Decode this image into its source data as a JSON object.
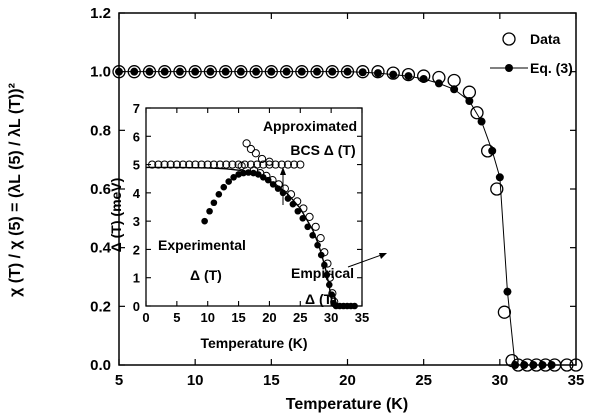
{
  "chart_data": [
    {
      "type": "scatter",
      "xlabel": "Temperature (K)",
      "ylabel": "χ (T) / χ (5) = (λL (5) / λL (T))²",
      "xlim": [
        5,
        35
      ],
      "ylim": [
        0,
        1.2
      ],
      "xticks": [
        5,
        10,
        15,
        20,
        25,
        30,
        35
      ],
      "yticks": [
        0.0,
        0.2,
        0.4,
        0.6,
        0.8,
        1.0,
        1.2
      ],
      "ytick_labels": [
        "0.0",
        "0.2",
        "0.4",
        "0.6",
        "0.8",
        "1.0",
        "1.2"
      ],
      "legend": {
        "placement": "top-right",
        "entries": [
          "Data",
          "Eq. (3)"
        ]
      },
      "series": [
        {
          "name": "Data",
          "marker": "open-circle",
          "points": [
            [
              5,
              1.0
            ],
            [
              6,
              1.0
            ],
            [
              7,
              1.0
            ],
            [
              8,
              1.0
            ],
            [
              9,
              1.0
            ],
            [
              10,
              1.0
            ],
            [
              11,
              1.0
            ],
            [
              12,
              1.0
            ],
            [
              13,
              1.0
            ],
            [
              14,
              1.0
            ],
            [
              15,
              1.0
            ],
            [
              16,
              1.0
            ],
            [
              17,
              1.0
            ],
            [
              18,
              1.0
            ],
            [
              19,
              1.0
            ],
            [
              20,
              1.0
            ],
            [
              21,
              1.0
            ],
            [
              22,
              1.0
            ],
            [
              23,
              0.995
            ],
            [
              24,
              0.99
            ],
            [
              25,
              0.985
            ],
            [
              26,
              0.98
            ],
            [
              27,
              0.97
            ],
            [
              28,
              0.93
            ],
            [
              28.5,
              0.86
            ],
            [
              29.2,
              0.73
            ],
            [
              29.8,
              0.6
            ],
            [
              30.3,
              0.18
            ],
            [
              30.8,
              0.015
            ],
            [
              31.2,
              0.0
            ],
            [
              31.8,
              0.0
            ],
            [
              32.4,
              0.0
            ],
            [
              33,
              0.0
            ],
            [
              33.6,
              0.0
            ],
            [
              34.4,
              0.0
            ],
            [
              35,
              0.0
            ]
          ]
        },
        {
          "name": "Eq. (3)",
          "marker": "filled-circle-with-line",
          "points": [
            [
              5,
              1.0
            ],
            [
              6,
              1.0
            ],
            [
              7,
              1.0
            ],
            [
              8,
              1.0
            ],
            [
              9,
              1.0
            ],
            [
              10,
              1.0
            ],
            [
              11,
              1.0
            ],
            [
              12,
              1.0
            ],
            [
              13,
              1.0
            ],
            [
              14,
              1.0
            ],
            [
              15,
              1.0
            ],
            [
              16,
              1.0
            ],
            [
              17,
              1.0
            ],
            [
              18,
              1.0
            ],
            [
              19,
              1.0
            ],
            [
              20,
              1.0
            ],
            [
              21,
              0.998
            ],
            [
              22,
              0.995
            ],
            [
              23,
              0.99
            ],
            [
              24,
              0.985
            ],
            [
              25,
              0.975
            ],
            [
              26,
              0.96
            ],
            [
              27,
              0.94
            ],
            [
              28,
              0.9
            ],
            [
              28.8,
              0.83
            ],
            [
              29.5,
              0.73
            ],
            [
              30,
              0.64
            ],
            [
              30.5,
              0.25
            ],
            [
              31,
              0.0
            ],
            [
              31.6,
              0.0
            ],
            [
              32.2,
              0.0
            ],
            [
              32.8,
              0.0
            ],
            [
              33.4,
              0.0
            ]
          ]
        }
      ]
    },
    {
      "type": "scatter",
      "xlabel": "Temperature (K)",
      "ylabel": "Δ (T) (meV)",
      "xlim": [
        0,
        35
      ],
      "ylim": [
        0,
        7
      ],
      "xticks": [
        0,
        5,
        10,
        15,
        20,
        25,
        30,
        35
      ],
      "yticks": [
        0,
        1,
        2,
        3,
        4,
        5,
        6,
        7
      ],
      "annotations": {
        "approximated": "Approximated",
        "bcs": "BCS Δ (T)",
        "experimental": "Experimental",
        "experimental_delta": "Δ (T)",
        "empirical": "Empirical",
        "empirical_delta": "Δ (T)"
      },
      "series": [
        {
          "marker": "open-circle",
          "points": [
            [
              1,
              5.0
            ],
            [
              2,
              5.0
            ],
            [
              3,
              5.0
            ],
            [
              4,
              5.0
            ],
            [
              5,
              5.0
            ],
            [
              6,
              5.0
            ],
            [
              7,
              5.0
            ],
            [
              8,
              5.0
            ],
            [
              9,
              5.0
            ],
            [
              10,
              5.0
            ],
            [
              11,
              5.0
            ],
            [
              12,
              5.0
            ],
            [
              13,
              5.0
            ],
            [
              14,
              5.0
            ],
            [
              15,
              5.0
            ],
            [
              16,
              5.0
            ],
            [
              17,
              5.0
            ],
            [
              18,
              5.0
            ],
            [
              19,
              5.0
            ],
            [
              20,
              5.0
            ],
            [
              21,
              5.0
            ],
            [
              22,
              5.0
            ],
            [
              23,
              5.0
            ],
            [
              24,
              5.0
            ],
            [
              25,
              5.0
            ],
            [
              16.3,
              5.75
            ],
            [
              17,
              5.55
            ],
            [
              17.8,
              5.4
            ],
            [
              18.8,
              5.2
            ],
            [
              20,
              5.1
            ],
            [
              15.5,
              4.95
            ],
            [
              17.5,
              4.8
            ],
            [
              18.5,
              4.7
            ],
            [
              19.5,
              4.6
            ],
            [
              20.5,
              4.45
            ],
            [
              21.5,
              4.3
            ],
            [
              22.5,
              4.15
            ],
            [
              23.5,
              3.95
            ],
            [
              24.5,
              3.7
            ],
            [
              25.5,
              3.45
            ],
            [
              26.5,
              3.15
            ],
            [
              27.5,
              2.8
            ],
            [
              28.3,
              2.4
            ],
            [
              28.9,
              1.9
            ],
            [
              29.4,
              1.5
            ],
            [
              29.8,
              1.0
            ],
            [
              30.2,
              0.45
            ],
            [
              30.5,
              0.15
            ]
          ]
        },
        {
          "marker": "filled-circle",
          "points": [
            [
              9.5,
              3.0
            ],
            [
              10.3,
              3.35
            ],
            [
              11,
              3.65
            ],
            [
              11.8,
              3.95
            ],
            [
              12.6,
              4.2
            ],
            [
              13.4,
              4.4
            ],
            [
              14.2,
              4.55
            ],
            [
              15,
              4.65
            ],
            [
              15.8,
              4.7
            ],
            [
              16.6,
              4.72
            ],
            [
              17.4,
              4.7
            ],
            [
              18.2,
              4.65
            ],
            [
              19,
              4.55
            ],
            [
              19.8,
              4.45
            ],
            [
              20.6,
              4.3
            ],
            [
              21.4,
              4.15
            ],
            [
              22.2,
              4.0
            ],
            [
              23,
              3.8
            ],
            [
              23.8,
              3.6
            ],
            [
              24.6,
              3.35
            ],
            [
              25.4,
              3.1
            ],
            [
              26.2,
              2.8
            ],
            [
              27,
              2.5
            ],
            [
              27.8,
              2.15
            ],
            [
              28.4,
              1.8
            ],
            [
              28.9,
              1.45
            ],
            [
              29.3,
              1.1
            ],
            [
              29.7,
              0.75
            ],
            [
              30.1,
              0.4
            ],
            [
              30.4,
              0.1
            ],
            [
              30.8,
              0.0
            ],
            [
              31.4,
              0.0
            ],
            [
              32,
              0.0
            ],
            [
              32.6,
              0.0
            ],
            [
              33.2,
              0.0
            ],
            [
              33.8,
              0.0
            ]
          ]
        },
        {
          "name": "curve",
          "marker": "line",
          "points": [
            [
              0,
              4.9
            ],
            [
              5,
              4.9
            ],
            [
              10,
              4.88
            ],
            [
              13,
              4.85
            ],
            [
              15,
              4.8
            ],
            [
              17,
              4.7
            ],
            [
              19,
              4.55
            ],
            [
              21,
              4.3
            ],
            [
              23,
              3.95
            ],
            [
              25,
              3.45
            ],
            [
              27,
              2.7
            ],
            [
              28,
              2.15
            ],
            [
              29,
              1.4
            ],
            [
              29.6,
              0.8
            ],
            [
              30,
              0.3
            ],
            [
              30.2,
              0.0
            ]
          ]
        }
      ]
    }
  ]
}
